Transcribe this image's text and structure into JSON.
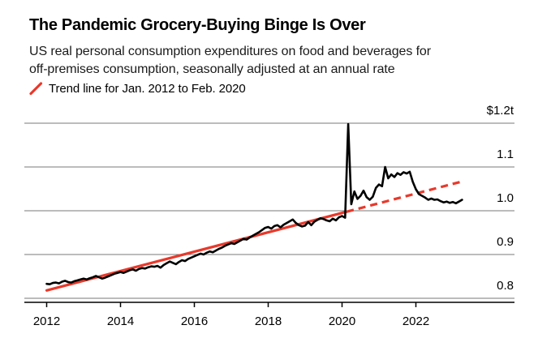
{
  "header": {
    "title": "The Pandemic Grocery-Buying Binge Is Over",
    "subtitle_line1": "US real personal consumption expenditures on food and beverages for",
    "subtitle_line2": "off-premises consumption, seasonally adjusted at an annual rate"
  },
  "legend": {
    "label": "Trend line for Jan. 2012 to Feb. 2020"
  },
  "colors": {
    "series": "#000000",
    "trend": "#e8392b",
    "grid": "#7a7a7a",
    "axis": "#000000",
    "text": "#000000"
  },
  "chart_data": {
    "type": "line",
    "title": "The Pandemic Grocery-Buying Binge Is Over",
    "subtitle": "US real personal consumption expenditures on food and beverages for off-premises consumption, seasonally adjusted at an annual rate",
    "unit": "trillions of US dollars, annual rate",
    "grid": "horizontal",
    "legend_position": "top-left",
    "xlabel": "",
    "ylabel": "",
    "ylim": [
      0.78,
      1.22
    ],
    "xlim_years": [
      2011.4,
      2024.7
    ],
    "xticks": [
      2012,
      2014,
      2016,
      2018,
      2020,
      2022
    ],
    "yticks": [
      {
        "value": 0.8,
        "label": "0.8"
      },
      {
        "value": 0.9,
        "label": "0.9"
      },
      {
        "value": 1.0,
        "label": "1.0"
      },
      {
        "value": 1.1,
        "label": "1.1"
      },
      {
        "value": 1.2,
        "label": "$1.2t"
      }
    ],
    "series": [
      {
        "name": "US real PCE on food and beverages for off-premises consumption",
        "color_key": "series",
        "start_year": 2012,
        "frequency": "monthly",
        "values": [
          0.833,
          0.832,
          0.835,
          0.836,
          0.834,
          0.838,
          0.84,
          0.837,
          0.836,
          0.839,
          0.841,
          0.843,
          0.845,
          0.843,
          0.846,
          0.848,
          0.851,
          0.848,
          0.845,
          0.847,
          0.85,
          0.853,
          0.856,
          0.858,
          0.86,
          0.858,
          0.861,
          0.864,
          0.866,
          0.863,
          0.867,
          0.869,
          0.868,
          0.871,
          0.873,
          0.872,
          0.874,
          0.87,
          0.876,
          0.88,
          0.884,
          0.881,
          0.878,
          0.883,
          0.887,
          0.885,
          0.89,
          0.893,
          0.896,
          0.899,
          0.902,
          0.9,
          0.904,
          0.907,
          0.905,
          0.909,
          0.913,
          0.916,
          0.92,
          0.923,
          0.926,
          0.924,
          0.928,
          0.932,
          0.936,
          0.934,
          0.939,
          0.943,
          0.947,
          0.951,
          0.956,
          0.961,
          0.963,
          0.959,
          0.965,
          0.967,
          0.962,
          0.968,
          0.972,
          0.976,
          0.98,
          0.972,
          0.967,
          0.964,
          0.966,
          0.974,
          0.967,
          0.975,
          0.979,
          0.983,
          0.981,
          0.978,
          0.976,
          0.982,
          0.978,
          0.985,
          0.988,
          0.984,
          1.198,
          1.015,
          1.044,
          1.027,
          1.034,
          1.046,
          1.031,
          1.025,
          1.032,
          1.052,
          1.06,
          1.056,
          1.1,
          1.074,
          1.083,
          1.077,
          1.086,
          1.082,
          1.088,
          1.085,
          1.089,
          1.066,
          1.049,
          1.038,
          1.034,
          1.03,
          1.025,
          1.028,
          1.025,
          1.026,
          1.022,
          1.019,
          1.021,
          1.018,
          1.02,
          1.017,
          1.021,
          1.025
        ]
      }
    ],
    "trend": {
      "name": "Trend line for Jan. 2012 to Feb. 2020",
      "color_key": "trend",
      "start_year": 2012.0,
      "start_value": 0.818,
      "solid_until_year": 2020.125,
      "end_year": 2023.3,
      "end_value": 1.068,
      "style_after_solid": "dashed"
    }
  }
}
